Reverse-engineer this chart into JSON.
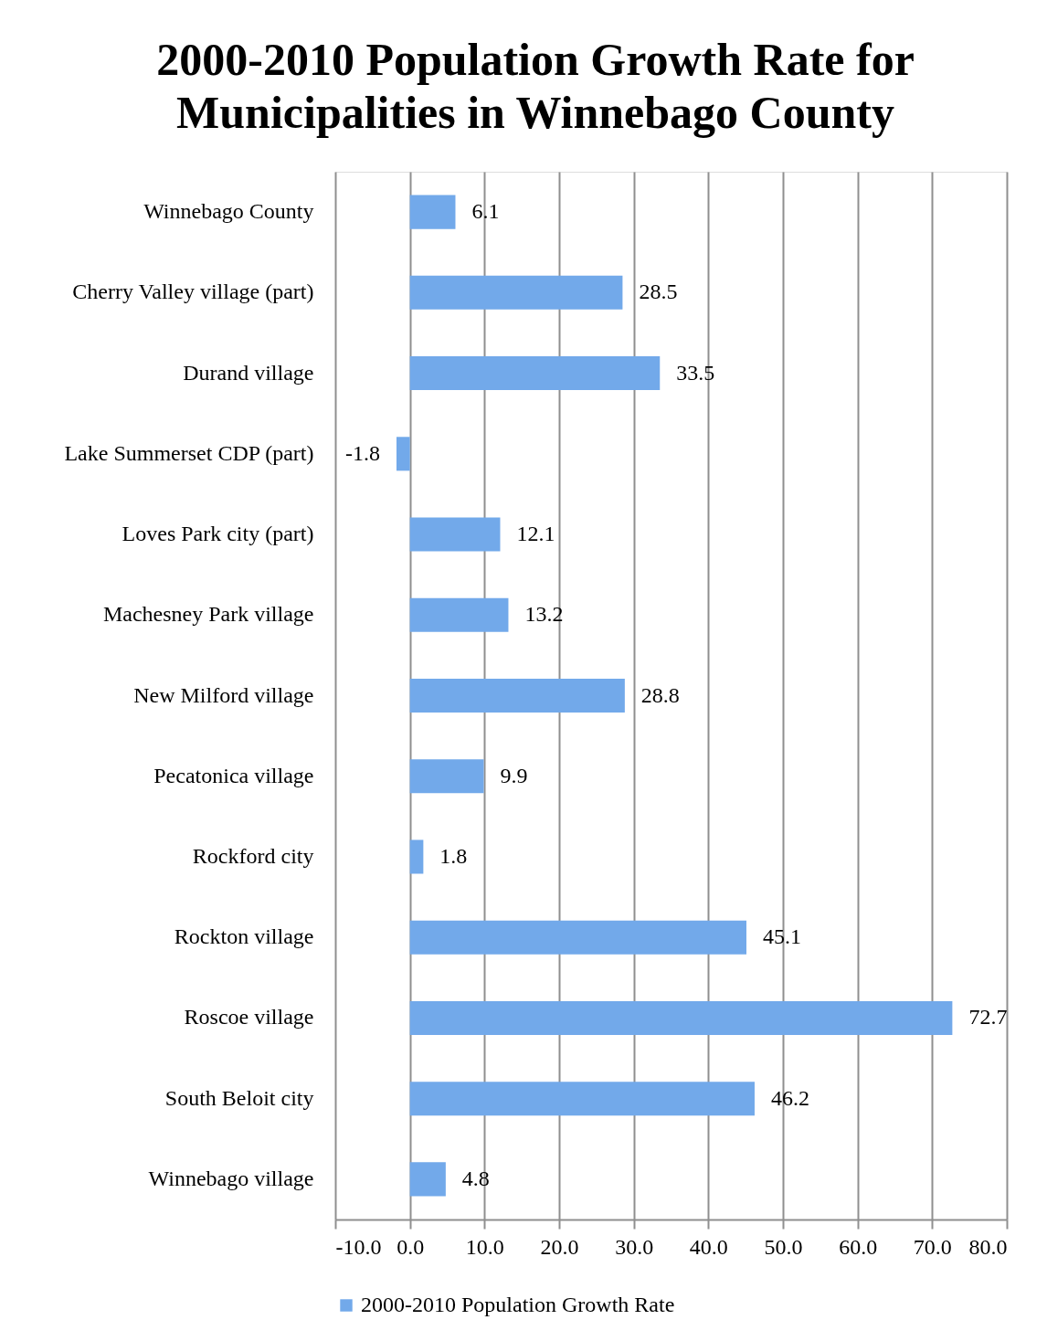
{
  "chart_data": {
    "type": "bar",
    "orientation": "horizontal",
    "title": "2000-2010 Population Growth Rate for Municipalities in Winnebago County",
    "categories": [
      "Winnebago County",
      "Cherry Valley village (part)",
      "Durand village",
      "Lake Summerset CDP (part)",
      "Loves Park city (part)",
      "Machesney Park village",
      "New Milford village",
      "Pecatonica village",
      "Rockford city",
      "Rockton village",
      "Roscoe village",
      "South Beloit city",
      "Winnebago village"
    ],
    "series": [
      {
        "name": "2000-2010 Population Growth Rate",
        "color": "#72a9ea",
        "values": [
          6.1,
          28.5,
          33.5,
          -1.8,
          12.1,
          13.2,
          28.8,
          9.9,
          1.8,
          45.1,
          72.7,
          46.2,
          4.8
        ]
      }
    ],
    "xlim": [
      -10,
      80
    ],
    "xticks": [
      {
        "value": -10,
        "label": "-10.0"
      },
      {
        "value": 0,
        "label": "0.0"
      },
      {
        "value": 10,
        "label": "10.0"
      },
      {
        "value": 20,
        "label": "20.0"
      },
      {
        "value": 30,
        "label": "30.0"
      },
      {
        "value": 40,
        "label": "40.0"
      },
      {
        "value": 50,
        "label": "50.0"
      },
      {
        "value": 60,
        "label": "60.0"
      },
      {
        "value": 70,
        "label": "70.0"
      },
      {
        "value": 80,
        "label": "80.0"
      }
    ],
    "grid": "x",
    "legend": "bottom",
    "data_labels": true
  }
}
